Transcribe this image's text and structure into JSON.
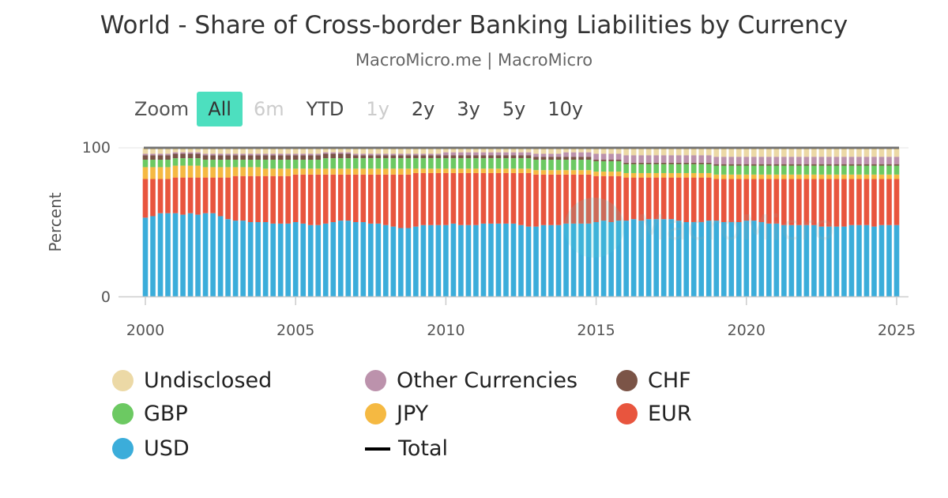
{
  "title": "World - Share of Cross-border Banking Liabilities by Currency",
  "subtitle": "MacroMicro.me | MacroMicro",
  "watermark": "MacroMicro",
  "zoom": {
    "label": "Zoom",
    "buttons": [
      {
        "label": "All",
        "state": "active"
      },
      {
        "label": "6m",
        "state": "disabled"
      },
      {
        "label": "YTD",
        "state": "enabled"
      },
      {
        "label": "1y",
        "state": "disabled"
      },
      {
        "label": "2y",
        "state": "enabled"
      },
      {
        "label": "3y",
        "state": "enabled"
      },
      {
        "label": "5y",
        "state": "enabled"
      },
      {
        "label": "10y",
        "state": "enabled"
      }
    ]
  },
  "chart_data": {
    "type": "bar",
    "stacked": true,
    "x_start": "2000 Q1",
    "x_frequency": "quarterly",
    "xlabel": "",
    "ylabel": "Percent",
    "ylim": [
      0,
      100
    ],
    "x_ticks": [
      "2000",
      "2005",
      "2010",
      "2015",
      "2020",
      "2025"
    ],
    "y_ticks": [
      "0",
      "100"
    ],
    "grid": false,
    "legend_position": "bottom",
    "series": [
      {
        "name": "USD",
        "color": "#3badda",
        "values": [
          53,
          54,
          56,
          56,
          56,
          55,
          56,
          55,
          56,
          56,
          54,
          52,
          51,
          51,
          50,
          50,
          50,
          49,
          49,
          49,
          50,
          49,
          48,
          48,
          49,
          50,
          51,
          51,
          50,
          50,
          49,
          49,
          48,
          47,
          46,
          46,
          47,
          48,
          48,
          48,
          48,
          49,
          48,
          48,
          48,
          49,
          49,
          49,
          49,
          49,
          48,
          47,
          47,
          48,
          48,
          48,
          49,
          49,
          49,
          49,
          50,
          51,
          50,
          51,
          51,
          52,
          51,
          52,
          52,
          52,
          52,
          51,
          50,
          50,
          50,
          51,
          51,
          50,
          50,
          50,
          51,
          51,
          50,
          49,
          49,
          48,
          48,
          48,
          48,
          48,
          47,
          47,
          47,
          47,
          48,
          48,
          48,
          47,
          48,
          48,
          48
        ]
      },
      {
        "name": "EUR",
        "color": "#e8553e",
        "values": [
          26,
          25,
          23,
          23,
          24,
          25,
          24,
          25,
          24,
          24,
          26,
          28,
          30,
          30,
          31,
          31,
          31,
          32,
          32,
          32,
          32,
          33,
          34,
          34,
          33,
          32,
          31,
          31,
          32,
          32,
          33,
          33,
          34,
          35,
          36,
          36,
          36,
          35,
          35,
          35,
          35,
          34,
          35,
          35,
          35,
          34,
          34,
          34,
          34,
          34,
          35,
          36,
          35,
          34,
          34,
          34,
          33,
          33,
          33,
          33,
          31,
          30,
          31,
          30,
          29,
          28,
          29,
          28,
          28,
          28,
          28,
          29,
          30,
          30,
          30,
          29,
          28,
          29,
          29,
          29,
          28,
          28,
          29,
          30,
          30,
          31,
          31,
          31,
          31,
          31,
          32,
          32,
          32,
          32,
          31,
          31,
          31,
          32,
          31,
          31,
          31
        ]
      },
      {
        "name": "JPY",
        "color": "#f5b942",
        "values": [
          8,
          8,
          8,
          8,
          8,
          8,
          8,
          8,
          7,
          7,
          7,
          7,
          6,
          6,
          6,
          6,
          5,
          5,
          5,
          5,
          4,
          4,
          4,
          4,
          4,
          4,
          4,
          4,
          4,
          4,
          4,
          4,
          4,
          4,
          4,
          4,
          3,
          3,
          3,
          3,
          3,
          3,
          3,
          3,
          3,
          3,
          3,
          3,
          3,
          3,
          3,
          3,
          3,
          3,
          3,
          3,
          3,
          3,
          3,
          3,
          3,
          3,
          3,
          3,
          3,
          3,
          3,
          3,
          3,
          3,
          3,
          3,
          3,
          3,
          3,
          3,
          3,
          3,
          3,
          3,
          3,
          3,
          3,
          3,
          3,
          3,
          3,
          3,
          3,
          3,
          3,
          3,
          3,
          3,
          3,
          3,
          3,
          3,
          3,
          3,
          3
        ]
      },
      {
        "name": "GBP",
        "color": "#6cc962",
        "values": [
          5,
          5,
          5,
          5,
          5,
          5,
          5,
          5,
          5,
          5,
          5,
          5,
          5,
          5,
          5,
          5,
          6,
          6,
          6,
          6,
          6,
          6,
          6,
          6,
          7,
          7,
          7,
          7,
          7,
          7,
          7,
          7,
          7,
          7,
          7,
          7,
          7,
          7,
          7,
          7,
          7,
          7,
          7,
          7,
          7,
          7,
          7,
          7,
          7,
          7,
          7,
          7,
          7,
          7,
          7,
          7,
          7,
          7,
          7,
          7,
          7,
          7,
          7,
          7,
          6,
          6,
          6,
          6,
          6,
          6,
          6,
          6,
          6,
          6,
          6,
          6,
          6,
          6,
          6,
          6,
          6,
          6,
          6,
          6,
          6,
          6,
          6,
          6,
          6,
          6,
          6,
          6,
          6,
          6,
          6,
          6,
          6,
          6,
          6,
          6,
          6
        ]
      },
      {
        "name": "CHF",
        "color": "#7b5447",
        "values": [
          3,
          3,
          3,
          3,
          3,
          3,
          3,
          3,
          3,
          3,
          3,
          3,
          3,
          3,
          3,
          3,
          3,
          3,
          3,
          3,
          3,
          3,
          3,
          3,
          3,
          3,
          3,
          3,
          2,
          2,
          2,
          2,
          2,
          2,
          2,
          2,
          2,
          2,
          2,
          2,
          2,
          2,
          2,
          2,
          2,
          2,
          2,
          2,
          2,
          2,
          2,
          2,
          2,
          2,
          2,
          2,
          2,
          2,
          2,
          2,
          1,
          1,
          1,
          1,
          1,
          1,
          1,
          1,
          1,
          1,
          1,
          1,
          1,
          1,
          1,
          1,
          1,
          1,
          1,
          1,
          1,
          1,
          1,
          1,
          1,
          1,
          1,
          1,
          1,
          1,
          1,
          1,
          1,
          1,
          1,
          1,
          1,
          1,
          1,
          1,
          1
        ]
      },
      {
        "name": "Other Currencies",
        "color": "#bc92ac",
        "values": [
          1,
          1,
          1,
          1,
          1,
          1,
          1,
          1,
          1,
          1,
          1,
          1,
          1,
          1,
          1,
          1,
          1,
          1,
          1,
          1,
          1,
          1,
          1,
          1,
          1,
          1,
          1,
          1,
          1,
          1,
          1,
          1,
          1,
          1,
          1,
          1,
          1,
          1,
          1,
          1,
          2,
          2,
          2,
          2,
          2,
          2,
          2,
          2,
          2,
          2,
          2,
          2,
          2,
          2,
          2,
          2,
          3,
          3,
          3,
          3,
          4,
          4,
          4,
          4,
          5,
          5,
          5,
          5,
          5,
          5,
          5,
          5,
          5,
          5,
          5,
          5,
          5,
          5,
          5,
          5,
          5,
          5,
          5,
          5,
          5,
          5,
          5,
          5,
          5,
          5,
          5,
          5,
          5,
          5,
          5,
          5,
          5,
          5,
          5,
          5,
          5
        ]
      },
      {
        "name": "Undisclosed",
        "color": "#ecd9a6",
        "values": [
          4,
          4,
          4,
          4,
          3,
          3,
          3,
          3,
          4,
          4,
          4,
          4,
          4,
          4,
          4,
          4,
          4,
          4,
          4,
          4,
          4,
          4,
          4,
          4,
          3,
          3,
          3,
          3,
          4,
          4,
          4,
          4,
          4,
          4,
          4,
          4,
          4,
          4,
          4,
          4,
          3,
          3,
          3,
          3,
          3,
          3,
          3,
          3,
          3,
          3,
          3,
          3,
          4,
          4,
          4,
          4,
          3,
          3,
          3,
          3,
          4,
          4,
          4,
          4,
          5,
          5,
          5,
          5,
          5,
          5,
          5,
          5,
          5,
          5,
          5,
          5,
          6,
          6,
          6,
          6,
          6,
          6,
          6,
          6,
          6,
          6,
          6,
          6,
          6,
          6,
          6,
          6,
          6,
          6,
          6,
          6,
          6,
          6,
          6,
          6,
          6
        ]
      },
      {
        "name": "Total",
        "color": "#000000",
        "type": "line",
        "value": 100
      }
    ]
  },
  "legend": [
    {
      "label": "Undisclosed",
      "color": "#ecd9a6",
      "marker": "circle"
    },
    {
      "label": "Other Currencies",
      "color": "#bc92ac",
      "marker": "circle"
    },
    {
      "label": "CHF",
      "color": "#7b5447",
      "marker": "circle"
    },
    {
      "label": "GBP",
      "color": "#6cc962",
      "marker": "circle"
    },
    {
      "label": "JPY",
      "color": "#f5b942",
      "marker": "circle"
    },
    {
      "label": "EUR",
      "color": "#e8553e",
      "marker": "circle"
    },
    {
      "label": "USD",
      "color": "#3badda",
      "marker": "circle"
    },
    {
      "label": "Total",
      "color": "#000000",
      "marker": "line"
    }
  ]
}
